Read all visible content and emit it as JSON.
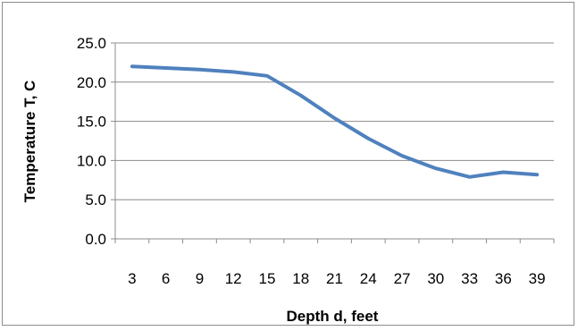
{
  "chart_data": {
    "type": "line",
    "title": "",
    "xlabel": "Depth d, feet",
    "ylabel": "Temperature T, C",
    "x": [
      "3",
      "6",
      "9",
      "12",
      "15",
      "18",
      "21",
      "24",
      "27",
      "30",
      "33",
      "36",
      "39"
    ],
    "series": [
      {
        "name": "",
        "values": [
          22.0,
          21.8,
          21.6,
          21.3,
          20.8,
          18.3,
          15.4,
          12.8,
          10.6,
          9.0,
          7.9,
          8.5,
          8.2
        ],
        "color": "#4F81BD"
      }
    ],
    "y_ticks": [
      "0.0",
      "5.0",
      "10.0",
      "15.0",
      "20.0",
      "25.0"
    ],
    "ylim": [
      0,
      25
    ],
    "grid": true,
    "legend": "none"
  }
}
